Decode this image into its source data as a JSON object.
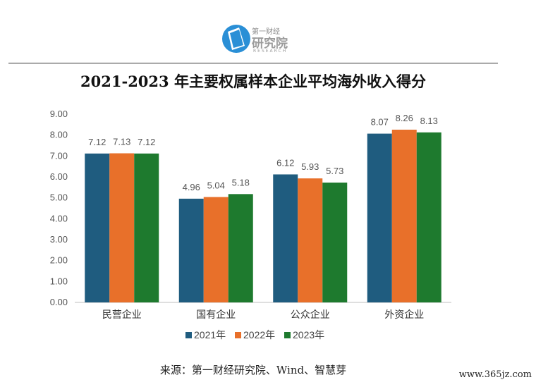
{
  "logo": {
    "small_text": "第一财经",
    "main_text": "研究院",
    "sub_text": "RESEARCH"
  },
  "title": "2021-2023 年主要权属样本企业平均海外收入得分",
  "source": "来源：第一财经研究院、Wind、智慧芽",
  "watermark": "www.365jz.com",
  "chart_data": {
    "type": "bar",
    "title": "2021-2023 年主要权属样本企业平均海外收入得分",
    "categories": [
      "民营企业",
      "国有企业",
      "公众企业",
      "外资企业"
    ],
    "series": [
      {
        "name": "2021年",
        "color": "#1f5c7f",
        "values": [
          7.12,
          4.96,
          6.12,
          8.07
        ]
      },
      {
        "name": "2022年",
        "color": "#e8702a",
        "values": [
          7.13,
          5.04,
          5.93,
          8.26
        ]
      },
      {
        "name": "2023年",
        "color": "#1e7a2e",
        "values": [
          7.12,
          5.18,
          5.73,
          8.13
        ]
      }
    ],
    "ylim": [
      0,
      9
    ],
    "yticks": [
      "0.00",
      "1.00",
      "2.00",
      "3.00",
      "4.00",
      "5.00",
      "6.00",
      "7.00",
      "8.00",
      "9.00"
    ],
    "data_labels": true,
    "grid": false,
    "legend": "bottom"
  }
}
